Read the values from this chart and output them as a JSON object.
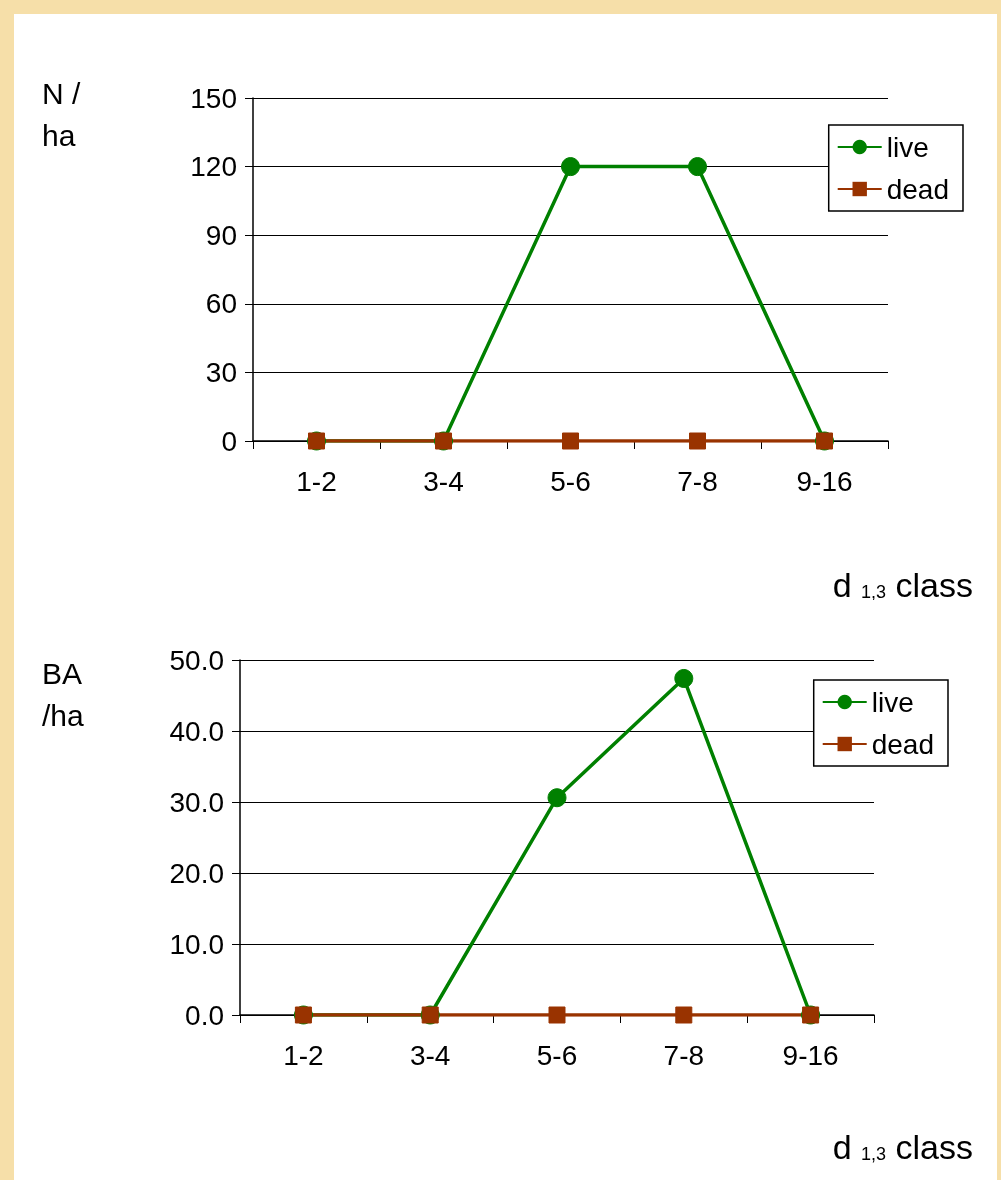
{
  "chart_data": [
    {
      "type": "line",
      "ylabel": "N /\nha",
      "xlabel": "d $_{1,3}$ class",
      "categories": [
        "1-2",
        "3-4",
        "5-6",
        "7-8",
        "9-16"
      ],
      "ylim": [
        0,
        150
      ],
      "yticks": [
        0,
        30,
        60,
        90,
        120,
        150
      ],
      "grid": "y",
      "legend": "top right",
      "series": [
        {
          "name": "live",
          "color": "#008000",
          "marker": "circle",
          "values": [
            0,
            0,
            120,
            120,
            0
          ]
        },
        {
          "name": "dead",
          "color": "#993300",
          "marker": "square",
          "values": [
            0,
            0,
            0,
            0,
            0
          ]
        }
      ]
    },
    {
      "type": "line",
      "ylabel": "BA\n/ha",
      "xlabel": "d $_{1,3}$ class",
      "categories": [
        "1-2",
        "3-4",
        "5-6",
        "7-8",
        "9-16"
      ],
      "ylim": [
        0,
        50
      ],
      "yticks": [
        {
          "value": 0,
          "label": "0.0"
        },
        {
          "value": 10,
          "label": "10.0"
        },
        {
          "value": 20,
          "label": "20.0"
        },
        {
          "value": 30,
          "label": "30.0"
        },
        {
          "value": 40,
          "label": "40.0"
        },
        {
          "value": 50,
          "label": "50.0"
        }
      ],
      "grid": "y",
      "legend": "top right",
      "series": [
        {
          "name": "live",
          "color": "#008000",
          "marker": "circle",
          "values": [
            0,
            0,
            30.6,
            47.4,
            0
          ]
        },
        {
          "name": "dead",
          "color": "#993300",
          "marker": "square",
          "values": [
            0,
            0,
            0,
            0,
            0
          ]
        }
      ]
    }
  ]
}
